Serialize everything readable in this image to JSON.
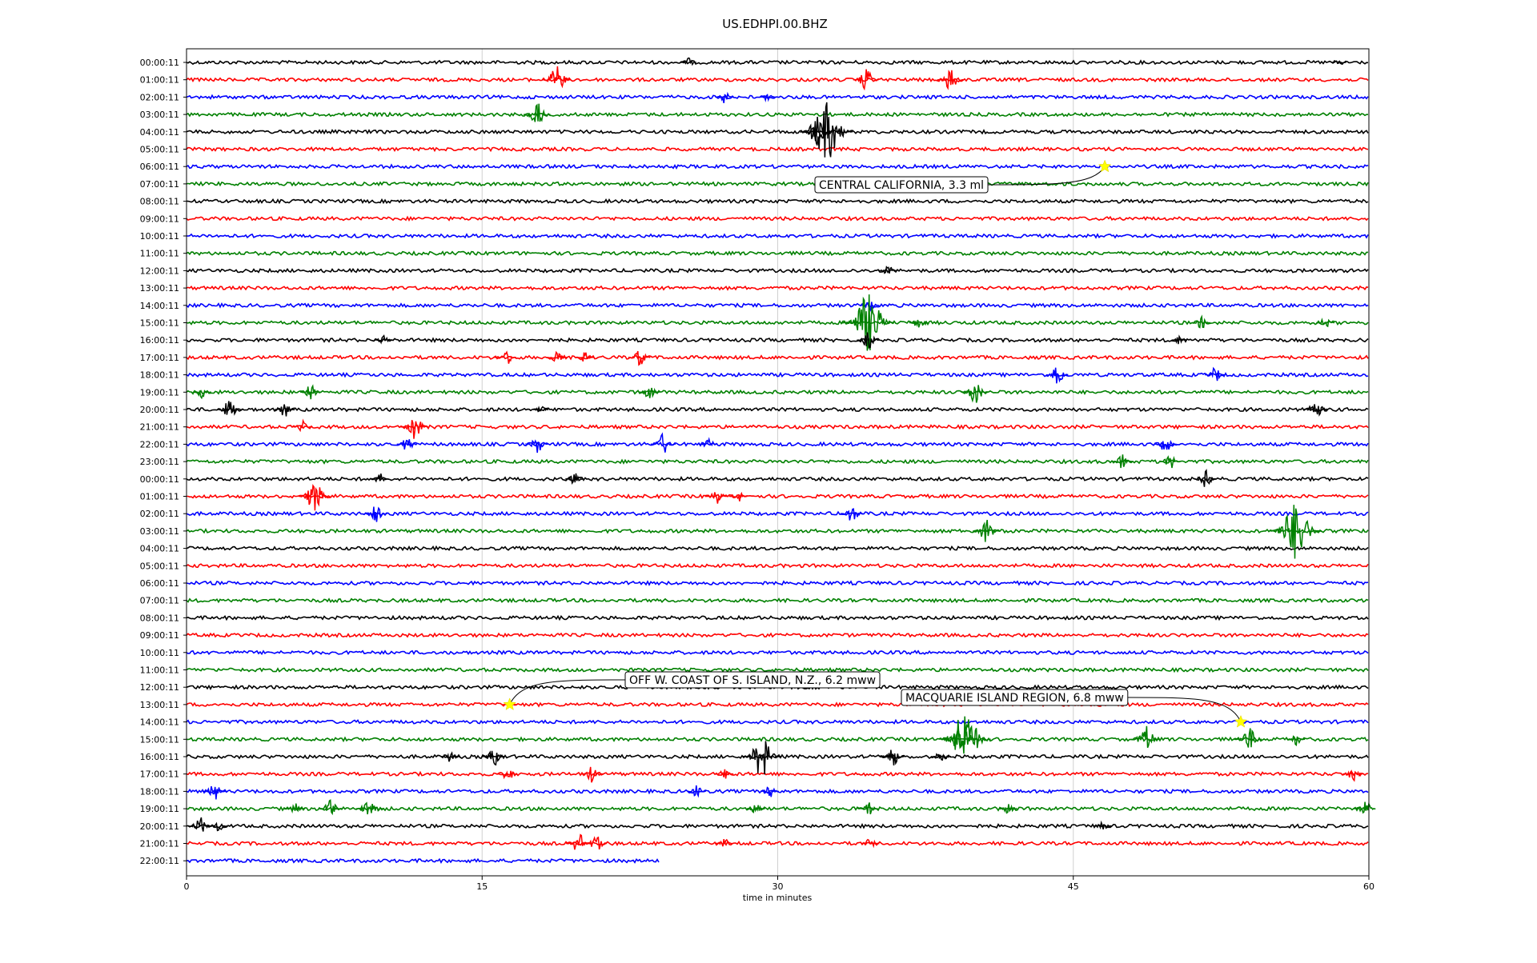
{
  "chart_data": {
    "type": "line",
    "title": "US.EDHPI.00.BHZ",
    "xlabel": "time in minutes",
    "xlim": [
      0,
      60
    ],
    "xticks": [
      "0",
      "15",
      "30",
      "45",
      "60"
    ],
    "grid": "vertical",
    "row_labels": [
      "00:00:11",
      "01:00:11",
      "02:00:11",
      "03:00:11",
      "04:00:11",
      "05:00:11",
      "06:00:11",
      "07:00:11",
      "08:00:11",
      "09:00:11",
      "10:00:11",
      "11:00:11",
      "12:00:11",
      "13:00:11",
      "14:00:11",
      "15:00:11",
      "16:00:11",
      "17:00:11",
      "18:00:11",
      "19:00:11",
      "20:00:11",
      "21:00:11",
      "22:00:11",
      "23:00:11",
      "00:00:11",
      "01:00:11",
      "02:00:11",
      "03:00:11",
      "04:00:11",
      "05:00:11",
      "06:00:11",
      "07:00:11",
      "08:00:11",
      "09:00:11",
      "10:00:11",
      "11:00:11",
      "12:00:11",
      "13:00:11",
      "14:00:11",
      "15:00:11",
      "16:00:11",
      "17:00:11",
      "18:00:11",
      "19:00:11",
      "20:00:11",
      "21:00:11",
      "22:00:11"
    ],
    "colors": [
      "#000000",
      "#ff0000",
      "#0000ff",
      "#008000"
    ],
    "last_row_end_minutes": 24,
    "events": [
      {
        "row": 6,
        "minute": 46.6,
        "label": "CENTRAL CALIFORNIA, 3.3 ml",
        "star_color": "#ffff00"
      },
      {
        "row": 37,
        "minute": 16.4,
        "label": "OFF W. COAST OF S. ISLAND, N.Z., 6.2 mww",
        "star_color": "#ffff00"
      },
      {
        "row": 38,
        "minute": 53.5,
        "label": "MACQUARIE ISLAND REGION, 6.8 mww",
        "star_color": "#ffff00"
      }
    ],
    "bursts": [
      {
        "row": 0,
        "minute": 25.5,
        "amp": 0.3
      },
      {
        "row": 0,
        "minute": 58.5,
        "amp": 0.25
      },
      {
        "row": 1,
        "minute": 18.8,
        "amp": 0.9
      },
      {
        "row": 1,
        "minute": 34.5,
        "amp": 0.7
      },
      {
        "row": 1,
        "minute": 38.8,
        "amp": 0.8
      },
      {
        "row": 2,
        "minute": 27.3,
        "amp": 0.4
      },
      {
        "row": 2,
        "minute": 29.5,
        "amp": 0.3
      },
      {
        "row": 3,
        "minute": 17.8,
        "amp": 0.8
      },
      {
        "row": 4,
        "minute": 32.0,
        "amp": 1.0
      },
      {
        "row": 4,
        "minute": 32.5,
        "amp": 1.9
      },
      {
        "row": 12,
        "minute": 35.6,
        "amp": 0.4
      },
      {
        "row": 14,
        "minute": 34.7,
        "amp": 0.4
      },
      {
        "row": 15,
        "minute": 34.6,
        "amp": 1.9
      },
      {
        "row": 15,
        "minute": 37.2,
        "amp": 0.5
      },
      {
        "row": 15,
        "minute": 51.5,
        "amp": 0.4
      },
      {
        "row": 15,
        "minute": 57.8,
        "amp": 0.4
      },
      {
        "row": 16,
        "minute": 10.0,
        "amp": 0.4
      },
      {
        "row": 16,
        "minute": 34.6,
        "amp": 0.6
      },
      {
        "row": 16,
        "minute": 50.4,
        "amp": 0.3
      },
      {
        "row": 17,
        "minute": 16.2,
        "amp": 0.6
      },
      {
        "row": 17,
        "minute": 18.8,
        "amp": 0.5
      },
      {
        "row": 17,
        "minute": 20.2,
        "amp": 0.4
      },
      {
        "row": 17,
        "minute": 23.0,
        "amp": 0.6
      },
      {
        "row": 18,
        "minute": 44.2,
        "amp": 0.6
      },
      {
        "row": 18,
        "minute": 52.2,
        "amp": 0.5
      },
      {
        "row": 19,
        "minute": 0.8,
        "amp": 0.4
      },
      {
        "row": 19,
        "minute": 6.3,
        "amp": 0.5
      },
      {
        "row": 19,
        "minute": 23.5,
        "amp": 0.5
      },
      {
        "row": 19,
        "minute": 40.0,
        "amp": 0.8
      },
      {
        "row": 20,
        "minute": 2.2,
        "amp": 0.7
      },
      {
        "row": 20,
        "minute": 5.0,
        "amp": 0.5
      },
      {
        "row": 20,
        "minute": 18.0,
        "amp": 0.3
      },
      {
        "row": 20,
        "minute": 57.3,
        "amp": 0.7
      },
      {
        "row": 21,
        "minute": 5.9,
        "amp": 0.4
      },
      {
        "row": 21,
        "minute": 11.6,
        "amp": 0.8
      },
      {
        "row": 22,
        "minute": 11.2,
        "amp": 0.5
      },
      {
        "row": 22,
        "minute": 17.8,
        "amp": 0.6
      },
      {
        "row": 22,
        "minute": 24.2,
        "amp": 0.7
      },
      {
        "row": 22,
        "minute": 26.5,
        "amp": 0.4
      },
      {
        "row": 22,
        "minute": 49.7,
        "amp": 0.6
      },
      {
        "row": 23,
        "minute": 47.5,
        "amp": 0.5
      },
      {
        "row": 23,
        "minute": 49.9,
        "amp": 0.5
      },
      {
        "row": 24,
        "minute": 9.8,
        "amp": 0.4
      },
      {
        "row": 24,
        "minute": 19.7,
        "amp": 0.4
      },
      {
        "row": 24,
        "minute": 51.7,
        "amp": 0.6
      },
      {
        "row": 25,
        "minute": 6.5,
        "amp": 1.0
      },
      {
        "row": 25,
        "minute": 26.9,
        "amp": 0.6
      },
      {
        "row": 25,
        "minute": 28.0,
        "amp": 0.4
      },
      {
        "row": 26,
        "minute": 9.6,
        "amp": 0.6
      },
      {
        "row": 26,
        "minute": 33.8,
        "amp": 0.6
      },
      {
        "row": 27,
        "minute": 40.6,
        "amp": 0.8
      },
      {
        "row": 27,
        "minute": 56.3,
        "amp": 1.9
      },
      {
        "row": 37,
        "minute": 16.4,
        "amp": 0.2
      },
      {
        "row": 39,
        "minute": 39.3,
        "amp": 1.2
      },
      {
        "row": 39,
        "minute": 39.5,
        "amp": 1.9
      },
      {
        "row": 39,
        "minute": 48.7,
        "amp": 0.9
      },
      {
        "row": 39,
        "minute": 53.9,
        "amp": 0.8
      },
      {
        "row": 39,
        "minute": 56.3,
        "amp": 0.4
      },
      {
        "row": 40,
        "minute": 13.4,
        "amp": 0.4
      },
      {
        "row": 40,
        "minute": 15.6,
        "amp": 0.6
      },
      {
        "row": 40,
        "minute": 29.2,
        "amp": 1.3
      },
      {
        "row": 40,
        "minute": 35.8,
        "amp": 0.7
      },
      {
        "row": 40,
        "minute": 38.3,
        "amp": 0.5
      },
      {
        "row": 41,
        "minute": 16.3,
        "amp": 0.5
      },
      {
        "row": 41,
        "minute": 20.6,
        "amp": 0.6
      },
      {
        "row": 41,
        "minute": 27.3,
        "amp": 0.4
      },
      {
        "row": 41,
        "minute": 59.2,
        "amp": 0.5
      },
      {
        "row": 42,
        "minute": 1.4,
        "amp": 0.6
      },
      {
        "row": 42,
        "minute": 25.9,
        "amp": 0.4
      },
      {
        "row": 42,
        "minute": 29.6,
        "amp": 0.4
      },
      {
        "row": 43,
        "minute": 5.5,
        "amp": 0.5
      },
      {
        "row": 43,
        "minute": 7.3,
        "amp": 0.6
      },
      {
        "row": 43,
        "minute": 9.3,
        "amp": 0.8
      },
      {
        "row": 43,
        "minute": 28.9,
        "amp": 0.4
      },
      {
        "row": 43,
        "minute": 34.6,
        "amp": 0.5
      },
      {
        "row": 43,
        "minute": 41.7,
        "amp": 0.4
      },
      {
        "row": 43,
        "minute": 59.8,
        "amp": 0.6
      },
      {
        "row": 44,
        "minute": 0.7,
        "amp": 0.6
      },
      {
        "row": 44,
        "minute": 1.6,
        "amp": 0.4
      },
      {
        "row": 44,
        "minute": 46.5,
        "amp": 0.4
      },
      {
        "row": 45,
        "minute": 19.9,
        "amp": 0.7
      },
      {
        "row": 45,
        "minute": 20.8,
        "amp": 0.6
      },
      {
        "row": 45,
        "minute": 27.3,
        "amp": 0.4
      },
      {
        "row": 45,
        "minute": 34.7,
        "amp": 0.4
      }
    ]
  }
}
